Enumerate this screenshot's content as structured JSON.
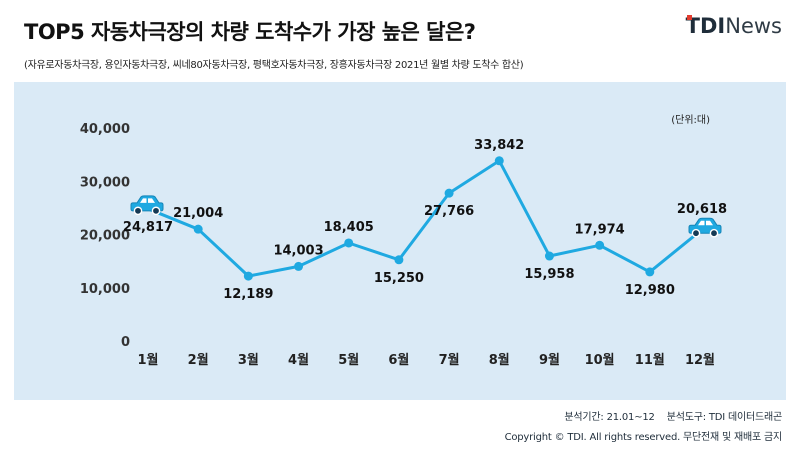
{
  "header": {
    "title": "TOP5 자동차극장의 차량 도착수가 가장 높은 달은?",
    "subtitle": "(자유로자동차극장, 용인자동차극장, 씨네80자동차극장, 평택호자동차극장, 장흥자동차극장 2021년 월별 차량 도착수 합산)"
  },
  "logo": {
    "brand": "TDI",
    "suffix": "News"
  },
  "chart_data": {
    "type": "line",
    "unit_label": "(단위:대)",
    "categories": [
      "1월",
      "2월",
      "3월",
      "4월",
      "5월",
      "6월",
      "7월",
      "8월",
      "9월",
      "10월",
      "11월",
      "12월"
    ],
    "values": [
      24817,
      21004,
      12189,
      14003,
      18405,
      15250,
      27766,
      33842,
      15958,
      17974,
      12980,
      20618
    ],
    "data_labels": [
      "24,817",
      "21,004",
      "12,189",
      "14,003",
      "18,405",
      "15,250",
      "27,766",
      "33,842",
      "15,958",
      "17,974",
      "12,980",
      "20,618"
    ],
    "ylim": [
      0,
      40000
    ],
    "yticks": [
      0,
      10000,
      20000,
      30000,
      40000
    ],
    "ytick_labels": [
      "0",
      "10,000",
      "20,000",
      "30,000",
      "40,000"
    ],
    "label_position": [
      "below",
      "above",
      "below",
      "above",
      "above",
      "below",
      "below",
      "above",
      "below",
      "above",
      "below",
      "above"
    ],
    "grid": false,
    "line_color": "#1fa9e1",
    "background_color": "#daeaf6",
    "car_icons": [
      "car-icon",
      "car-icon"
    ]
  },
  "footer": {
    "period": "분석기간: 21.01~12",
    "tool": "분석도구: TDI 데이터드래곤",
    "copyright": "Copyright © TDI. All rights reserved. 무단전재 및 재배포 금지"
  }
}
